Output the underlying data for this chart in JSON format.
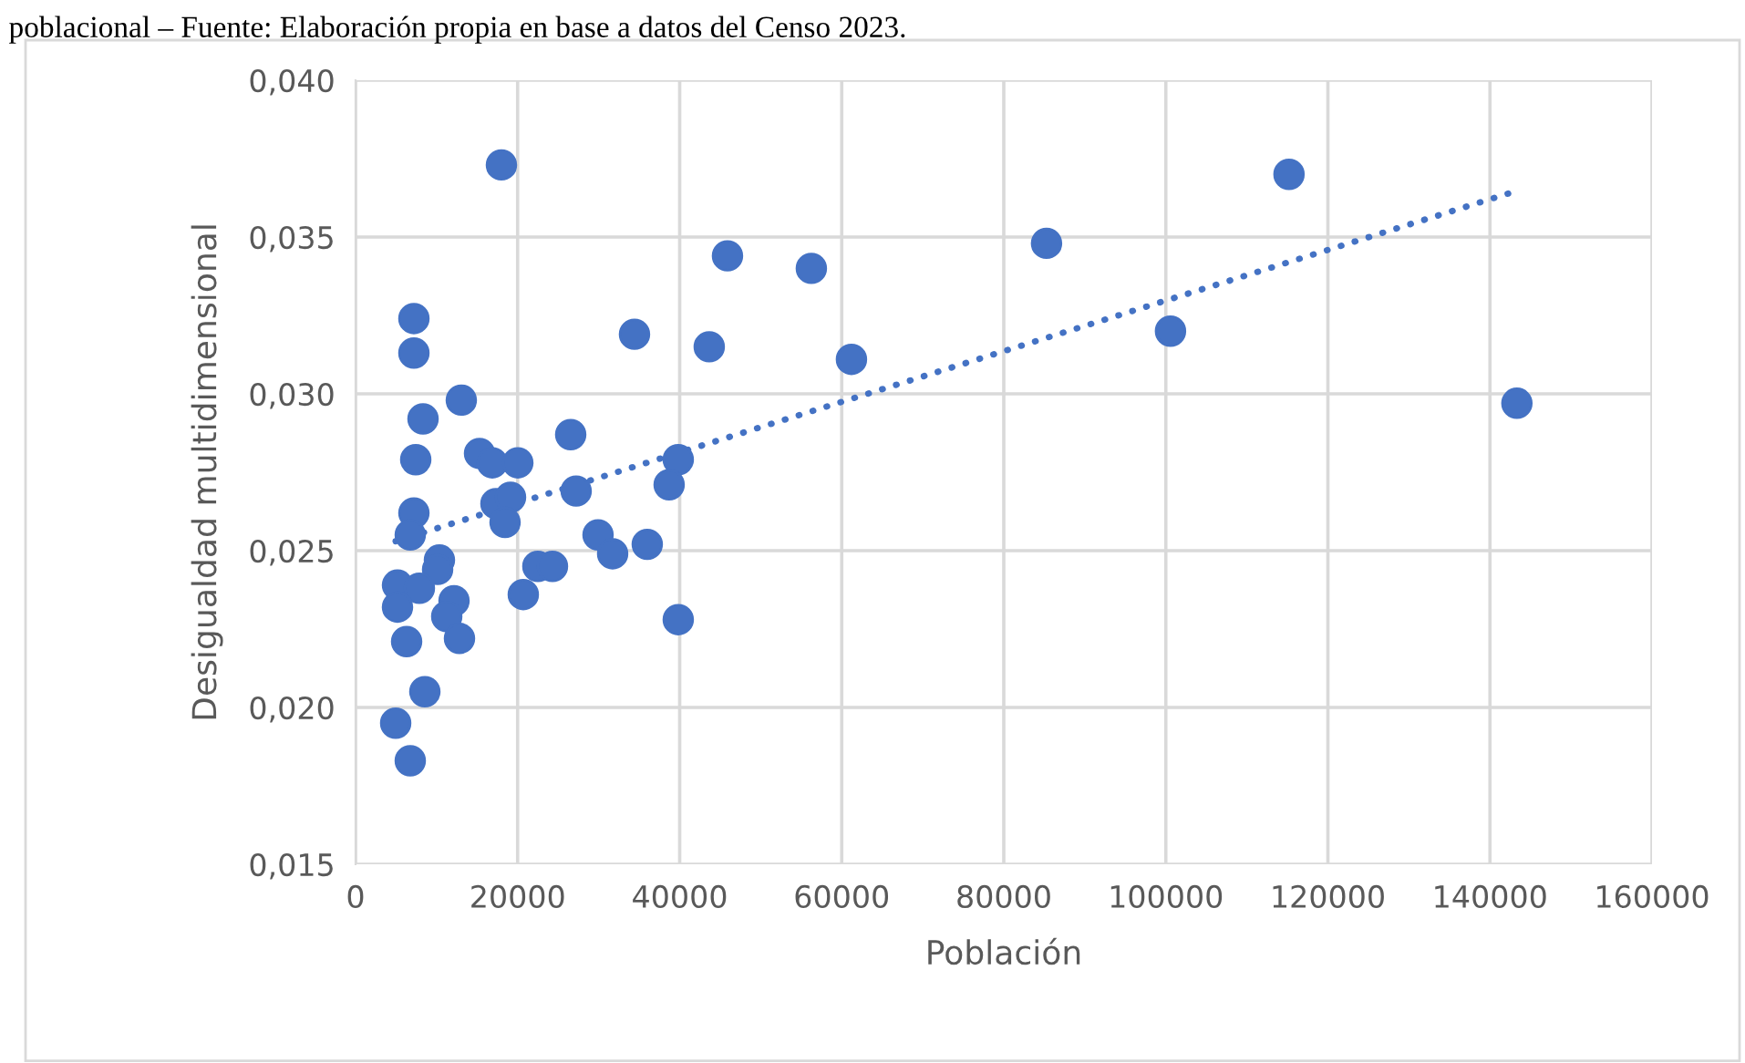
{
  "chart_data": {
    "type": "scatter",
    "xlabel": "Población",
    "ylabel": "Desigualdad multidimensional",
    "annotations": [
      "poblacional – Fuente: Elaboración propia en base a datos del Censo 2023."
    ],
    "series": [
      {
        "color": "#4472c4",
        "marker": "circle",
        "x": [
          7200,
          7200,
          13050,
          8325,
          7425,
          15300,
          16875,
          20025,
          26550,
          7200,
          6750,
          17325,
          19125,
          18450,
          27225,
          39825,
          38700,
          10350,
          10125,
          5175,
          7875,
          5175,
          12150,
          11250,
          12825,
          6300,
          20700,
          22500,
          24300,
          29925,
          31725,
          36000,
          39825,
          8550,
          4950,
          6750,
          34425,
          18000,
          45900,
          56250,
          43650,
          61200,
          85275,
          100575,
          115200,
          143325
        ],
        "values": [
          0.0324,
          0.0313,
          0.0298,
          0.0292,
          0.0279,
          0.0281,
          0.0278,
          0.0278,
          0.0287,
          0.0262,
          0.0255,
          0.0265,
          0.0267,
          0.0259,
          0.0269,
          0.0279,
          0.0271,
          0.0247,
          0.0244,
          0.0239,
          0.0238,
          0.0232,
          0.0234,
          0.0229,
          0.0222,
          0.0221,
          0.0236,
          0.0245,
          0.0245,
          0.0255,
          0.0249,
          0.0252,
          0.0228,
          0.0205,
          0.0195,
          0.0183,
          0.0319,
          0.0373,
          0.0344,
          0.034,
          0.0315,
          0.0311,
          0.0348,
          0.032,
          0.037,
          0.0297
        ]
      },
      {
        "type": "line",
        "color": "#4472c4",
        "line_style": "dotted",
        "x": [
          4950,
          142425
        ],
        "values": [
          0.0253,
          0.0364
        ]
      }
    ],
    "xlim": [
      0,
      160000
    ],
    "xticks": [
      0,
      20000,
      40000,
      60000,
      80000,
      100000,
      120000,
      140000,
      160000
    ],
    "ylim": [
      0.015,
      0.04
    ],
    "yticks": [
      {
        "value": 0.015,
        "label": "0,015"
      },
      {
        "value": 0.02,
        "label": "0,020"
      },
      {
        "value": 0.025,
        "label": "0,025"
      },
      {
        "value": 0.03,
        "label": "0,030"
      },
      {
        "value": 0.035,
        "label": "0,035"
      },
      {
        "value": 0.04,
        "label": "0,040"
      }
    ],
    "grid": true,
    "legend": false
  }
}
